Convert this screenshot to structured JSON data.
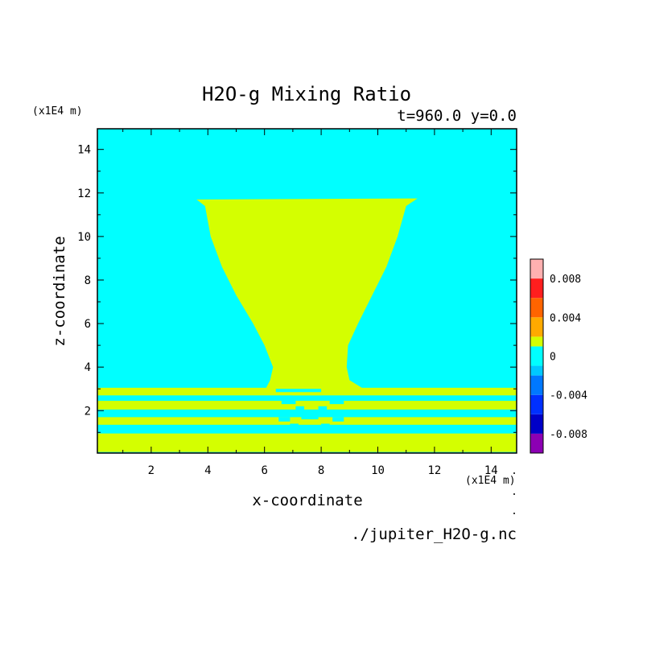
{
  "chart_data": {
    "type": "heatmap",
    "title": "H2O-g Mixing Ratio",
    "subtitle": "t=960.0 y=0.0",
    "xlabel": "x-coordinate",
    "ylabel": "z-coordinate",
    "x_unit": "(x1E4 m)",
    "y_unit": "(x1E4 m)",
    "xlim": [
      0.1,
      14.9
    ],
    "ylim": [
      0.05,
      14.95
    ],
    "x_ticks": [
      2,
      4,
      6,
      8,
      10,
      12,
      14
    ],
    "y_ticks": [
      2,
      4,
      6,
      8,
      10,
      12,
      14
    ],
    "source_file": "./jupiter_H2O-g.nc",
    "field_colors": {
      "background": "#00ffff",
      "vapor": "#d4ff00"
    },
    "colorbar": {
      "levels": [
        -0.01,
        -0.008,
        -0.006,
        -0.004,
        -0.002,
        0,
        0.002,
        0.004,
        0.006,
        0.008,
        0.01
      ],
      "colors": [
        "#8c00b3",
        "#0000c8",
        "#0030ff",
        "#0078ff",
        "#00c8ff",
        "#00ffff",
        "#d4ff00",
        "#ffaa00",
        "#ff6400",
        "#ff1e1e",
        "#ffb0b0"
      ],
      "tick_values": [
        0.008,
        0.004,
        0,
        -0.004,
        -0.008
      ],
      "tick_labels": [
        "0.008",
        "0.004",
        "0",
        "-0.004",
        "-0.008"
      ]
    },
    "plume": {
      "top_z": 11.7,
      "top_x": [
        3.6,
        11.4
      ],
      "neck_z": 3.4,
      "neck_x": [
        6.3,
        8.9
      ]
    },
    "layers": [
      {
        "z_bottom": 0.1,
        "z_top": 0.95,
        "value": "vapor"
      },
      {
        "z_bottom": 1.35,
        "z_top": 1.7,
        "value": "vapor"
      },
      {
        "z_bottom": 2.05,
        "z_top": 2.45,
        "value": "vapor"
      },
      {
        "z_bottom": 2.7,
        "z_top": 3.05,
        "value": "vapor"
      }
    ]
  }
}
